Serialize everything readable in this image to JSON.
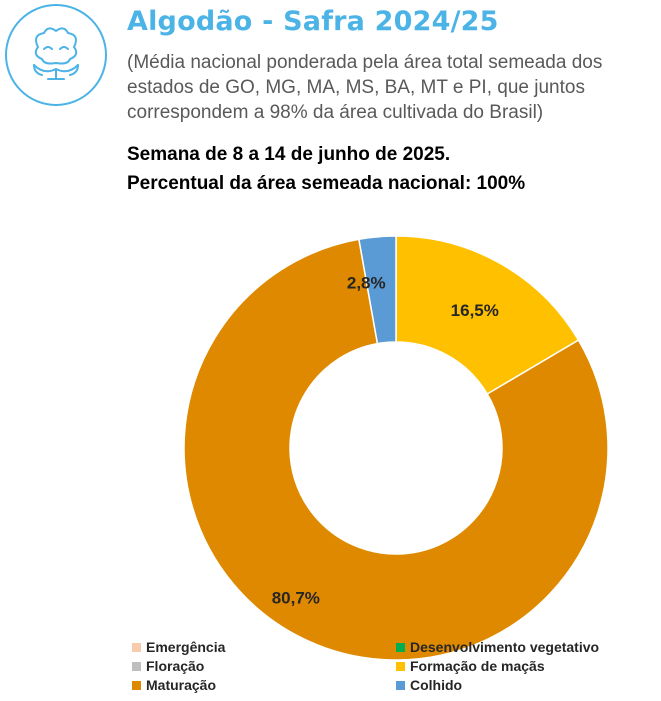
{
  "header": {
    "title": "Algodão - Safra 2024/25",
    "subtitle": "(Média nacional ponderada pela área total semeada dos estados de GO, MG, MA, MS, BA, MT e PI, que juntos correspondem a 98% da área cultivada do Brasil)",
    "week": "Semana de 8 a 14 de junho de 2025.",
    "sown_area": "Percentual da área semeada nacional: 100%",
    "logo_icon": "cotton-flower-icon",
    "logo_color": "#4bb3e6"
  },
  "chart_data": {
    "type": "pie",
    "donut": true,
    "categories": [
      "Emergência",
      "Desenvolvimento vegetativo",
      "Floração",
      "Formação de maçãs",
      "Maturação",
      "Colhido"
    ],
    "values": [
      0,
      0,
      0,
      16.5,
      80.7,
      2.8
    ],
    "labels": [
      "",
      "",
      "",
      "16,5%",
      "80,7%",
      "2,8%"
    ],
    "colors": [
      "#f8cbad",
      "#00b050",
      "#bfbfbf",
      "#ffc000",
      "#df8900",
      "#5b9bd5"
    ],
    "legend_position": "bottom"
  }
}
